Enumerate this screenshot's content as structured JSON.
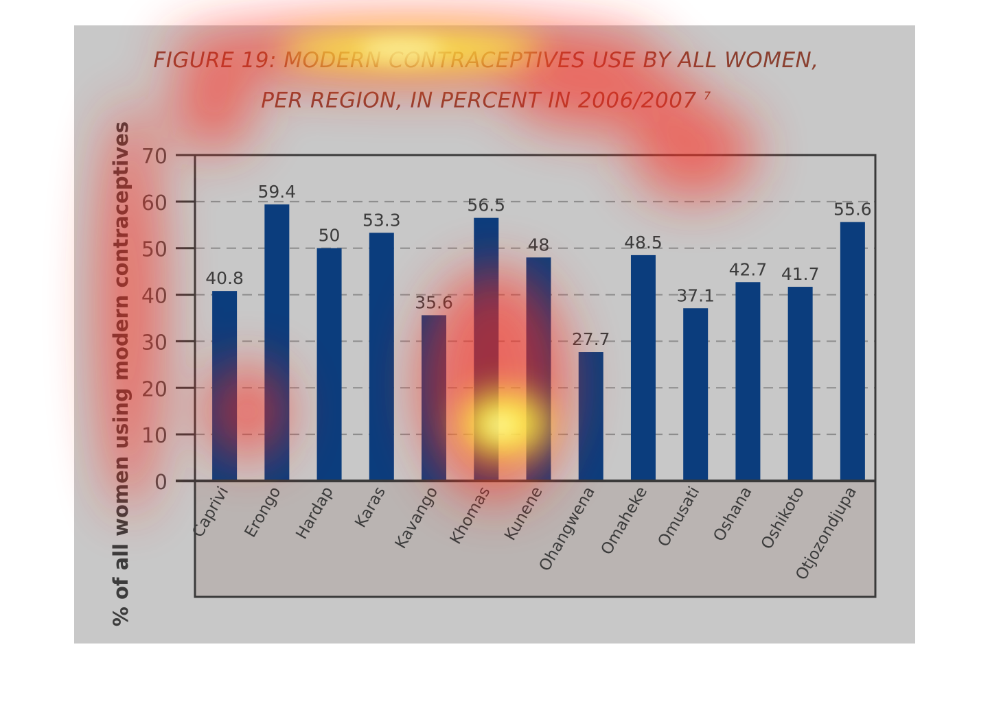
{
  "title_line1": "FIGURE 19: MODERN CONTRACEPTIVES USE BY ALL WOMEN,",
  "title_line2": "PER REGION, IN PERCENT IN 2006/2007",
  "title_footnote": "7",
  "colors": {
    "bar": "#0b3d7d",
    "background": "#c8c8c8",
    "axis": "#3a3a3a",
    "grid": "#8c8c8c",
    "title": "#8a4030"
  },
  "chart_data": {
    "type": "bar",
    "title": "FIGURE 19: MODERN CONTRACEPTIVES USE BY ALL WOMEN, PER REGION, IN PERCENT IN 2006/2007",
    "xlabel": "",
    "ylabel": "% of all women using modern contraceptives",
    "ylim": [
      0,
      70
    ],
    "yticks": [
      0,
      10,
      20,
      30,
      40,
      50,
      60,
      70
    ],
    "grid": true,
    "categories": [
      "Caprivi",
      "Erongo",
      "Hardap",
      "Karas",
      "Kavango",
      "Khomas",
      "Kunene",
      "Ohangwena",
      "Omaheke",
      "Omusati",
      "Oshana",
      "Oshikoto",
      "Otjozondjupa"
    ],
    "values": [
      40.8,
      59.4,
      50,
      53.3,
      35.6,
      56.5,
      48,
      27.7,
      48.5,
      37.1,
      42.7,
      41.7,
      55.6
    ],
    "data_labels": [
      "40.8",
      "59.4",
      "50",
      "53.3",
      "35.6",
      "56.5",
      "48",
      "27.7",
      "48.5",
      "37.1",
      "42.7",
      "41.7",
      "55.6"
    ]
  }
}
